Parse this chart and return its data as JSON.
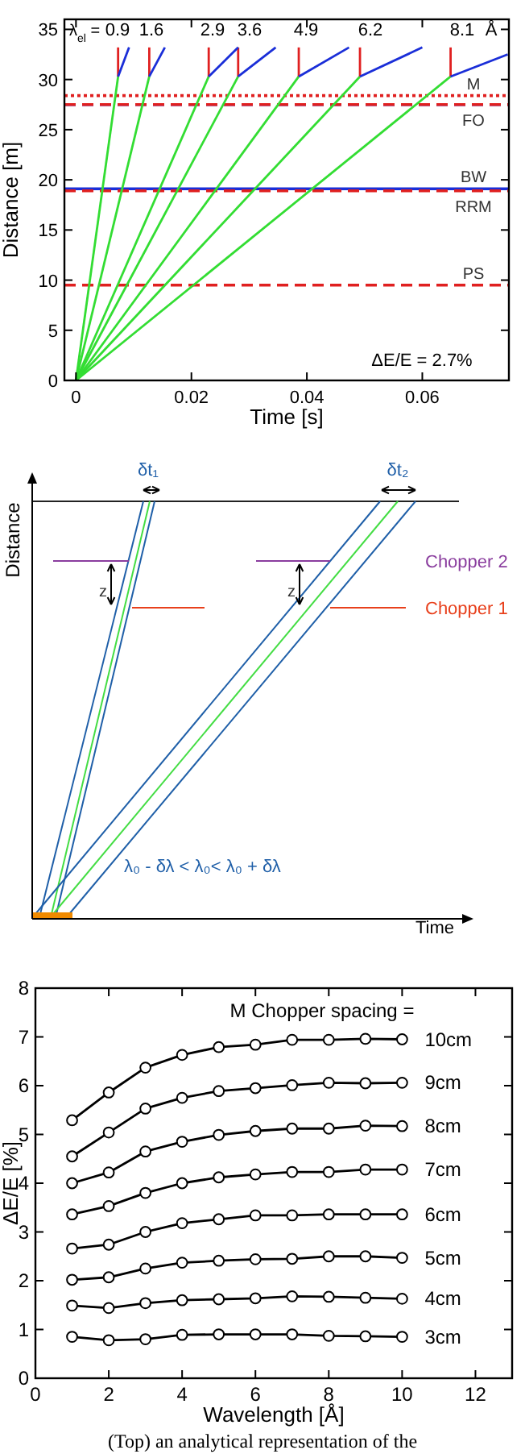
{
  "chart_data": [
    {
      "type": "line",
      "xlabel": "Time [s]",
      "ylabel": "Distance [m]",
      "xlim": [
        -0.002,
        0.075
      ],
      "ylim": [
        0,
        36
      ],
      "xticks": [
        0,
        0.02,
        0.04,
        0.06
      ],
      "yticks": [
        0,
        5,
        10,
        15,
        20,
        25,
        30,
        35
      ],
      "grid": false,
      "series": [
        {
          "color": "#33dd33",
          "x": [
            0,
            0.0073
          ],
          "values": [
            0,
            30.3
          ]
        },
        {
          "color": "#33dd33",
          "x": [
            0,
            0.0127
          ],
          "values": [
            0,
            30.3
          ]
        },
        {
          "color": "#33dd33",
          "x": [
            0,
            0.023
          ],
          "values": [
            0,
            30.3
          ]
        },
        {
          "color": "#33dd33",
          "x": [
            0,
            0.0281
          ],
          "values": [
            0,
            30.3
          ]
        },
        {
          "color": "#33dd33",
          "x": [
            0,
            0.0386
          ],
          "values": [
            0,
            30.3
          ]
        },
        {
          "color": "#33dd33",
          "x": [
            0,
            0.0492
          ],
          "values": [
            0,
            30.3
          ]
        },
        {
          "color": "#33dd33",
          "x": [
            0,
            0.0649
          ],
          "values": [
            0,
            30.3
          ]
        },
        {
          "color": "#e02020",
          "x": [
            0.0073,
            0.0073
          ],
          "values": [
            30.3,
            33.2
          ]
        },
        {
          "color": "#e02020",
          "x": [
            0.0127,
            0.0127
          ],
          "values": [
            30.3,
            33.2
          ]
        },
        {
          "color": "#e02020",
          "x": [
            0.023,
            0.023
          ],
          "values": [
            30.3,
            33.2
          ]
        },
        {
          "color": "#e02020",
          "x": [
            0.0281,
            0.0281
          ],
          "values": [
            30.3,
            33.2
          ]
        },
        {
          "color": "#e02020",
          "x": [
            0.0386,
            0.0386
          ],
          "values": [
            30.3,
            33.2
          ]
        },
        {
          "color": "#e02020",
          "x": [
            0.0492,
            0.0492
          ],
          "values": [
            30.3,
            33.2
          ]
        },
        {
          "color": "#e02020",
          "x": [
            0.0649,
            0.0649
          ],
          "values": [
            30.3,
            33.2
          ]
        },
        {
          "color": "#1a2ed8",
          "x": [
            0.0073,
            0.0092
          ],
          "values": [
            30.3,
            33.2
          ]
        },
        {
          "color": "#1a2ed8",
          "x": [
            0.0127,
            0.0154
          ],
          "values": [
            30.3,
            33.2
          ]
        },
        {
          "color": "#1a2ed8",
          "x": [
            0.023,
            0.0281
          ],
          "values": [
            30.3,
            33.2
          ]
        },
        {
          "color": "#1a2ed8",
          "x": [
            0.0281,
            0.0346
          ],
          "values": [
            30.3,
            33.2
          ]
        },
        {
          "color": "#1a2ed8",
          "x": [
            0.0386,
            0.0473
          ],
          "values": [
            30.3,
            33.2
          ]
        },
        {
          "color": "#1a2ed8",
          "x": [
            0.0492,
            0.06
          ],
          "values": [
            30.3,
            33.2
          ]
        },
        {
          "color": "#1a2ed8",
          "x": [
            0.0649,
            0.0748
          ],
          "values": [
            30.3,
            32.5
          ]
        }
      ],
      "ref_lines": [
        {
          "axis": "y",
          "value": 28.4,
          "label": "M",
          "color": "#e02020",
          "line_style": "dotted"
        },
        {
          "axis": "y",
          "value": 27.5,
          "label": null,
          "color": "#1a2ed8",
          "line_style": "dashed"
        },
        {
          "axis": "y",
          "value": 27.5,
          "label": "FO",
          "color": "#e02020",
          "line_style": "dashed"
        },
        {
          "axis": "y",
          "value": 19.1,
          "label": "BW",
          "color": "#1a2ed8",
          "line_style": "solid"
        },
        {
          "axis": "y",
          "value": 18.9,
          "label": "RRM",
          "color": "#e02020",
          "line_style": "dashed"
        },
        {
          "axis": "y",
          "value": 9.5,
          "label": "PS",
          "color": "#e02020",
          "line_style": "dashed"
        }
      ],
      "annotations": [
        "λ$_{el}$ =",
        "0.9",
        "1.6",
        "2.9",
        "3.6",
        "4.9",
        "6.2",
        "8.1",
        "Å",
        "ΔE/E = 2.7%"
      ]
    },
    {
      "type": "other",
      "xlabel": "Time",
      "ylabel": "Distance",
      "annotations": [
        "δt₁",
        "δt₂",
        "z",
        "z",
        "Chopper 2",
        "Chopper 1",
        "λ₀ - δλ < λ₀< λ₀ + δλ"
      ]
    },
    {
      "type": "line",
      "xlabel": "Wavelength [Å]",
      "ylabel": "ΔE/E [%]",
      "xlim": [
        0,
        13
      ],
      "ylim": [
        0,
        8
      ],
      "xticks": [
        0,
        2,
        4,
        6,
        8,
        10,
        12
      ],
      "yticks": [
        0,
        1,
        2,
        3,
        4,
        5,
        6,
        7,
        8
      ],
      "grid": false,
      "legend": "right",
      "marker": "circle",
      "x": [
        1,
        2,
        3,
        4,
        5,
        6,
        7,
        8,
        9,
        10
      ],
      "series": [
        {
          "name": "10cm",
          "color": "#000000",
          "values": [
            5.29,
            5.86,
            6.37,
            6.63,
            6.79,
            6.84,
            6.94,
            6.94,
            6.96,
            6.95
          ]
        },
        {
          "name": "9cm",
          "color": "#000000",
          "values": [
            4.55,
            5.04,
            5.53,
            5.75,
            5.89,
            5.95,
            6.01,
            6.06,
            6.05,
            6.06
          ]
        },
        {
          "name": "8cm",
          "color": "#000000",
          "values": [
            4.0,
            4.22,
            4.65,
            4.85,
            4.99,
            5.07,
            5.12,
            5.12,
            5.18,
            5.17
          ]
        },
        {
          "name": "7cm",
          "color": "#000000",
          "values": [
            3.36,
            3.53,
            3.8,
            4.0,
            4.12,
            4.18,
            4.23,
            4.23,
            4.28,
            4.28
          ]
        },
        {
          "name": "6cm",
          "color": "#000000",
          "values": [
            2.66,
            2.74,
            3.0,
            3.18,
            3.26,
            3.34,
            3.34,
            3.36,
            3.36,
            3.36
          ]
        },
        {
          "name": "5cm",
          "color": "#000000",
          "values": [
            2.02,
            2.07,
            2.25,
            2.37,
            2.41,
            2.44,
            2.45,
            2.5,
            2.5,
            2.47
          ]
        },
        {
          "name": "4cm",
          "color": "#000000",
          "values": [
            1.49,
            1.44,
            1.54,
            1.6,
            1.62,
            1.64,
            1.68,
            1.67,
            1.65,
            1.63
          ]
        },
        {
          "name": "3cm",
          "color": "#000000",
          "values": [
            0.85,
            0.78,
            0.8,
            0.89,
            0.9,
            0.9,
            0.9,
            0.87,
            0.86,
            0.85
          ]
        }
      ],
      "annotations": [
        "M Chopper spacing =",
        "(Top) an analytical representation of the"
      ]
    }
  ]
}
